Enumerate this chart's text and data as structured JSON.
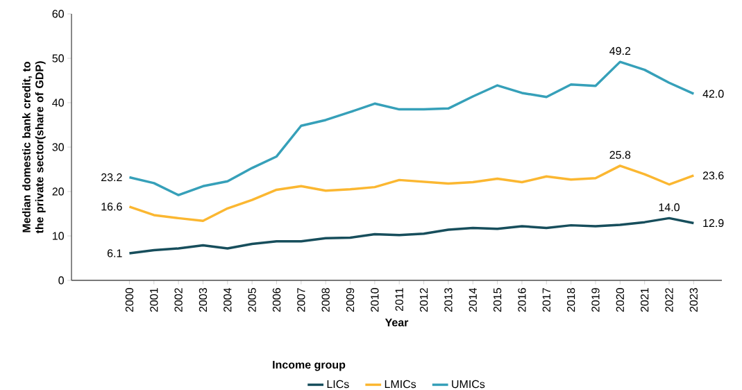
{
  "chart_data": {
    "type": "line",
    "xlabel": "Year",
    "ylabel": "Median domestic bank credit, to the private sector(share of GDP)",
    "legend_title": "Income group",
    "categories": [
      "2000",
      "2001",
      "2002",
      "2003",
      "2004",
      "2005",
      "2006",
      "2007",
      "2008",
      "2009",
      "2010",
      "2011",
      "2012",
      "2013",
      "2014",
      "2015",
      "2016",
      "2017",
      "2018",
      "2019",
      "2020",
      "2021",
      "2022",
      "2023"
    ],
    "series": [
      {
        "name": "LICs",
        "color": "#174e5c",
        "values": [
          6.1,
          6.8,
          7.2,
          7.9,
          7.2,
          8.2,
          8.8,
          8.8,
          9.5,
          9.6,
          10.4,
          10.2,
          10.5,
          11.4,
          11.8,
          11.6,
          12.2,
          11.8,
          12.4,
          12.2,
          12.5,
          13.1,
          14.0,
          12.9
        ],
        "value_labels": [
          "6.1",
          null,
          null,
          null,
          null,
          null,
          null,
          null,
          null,
          null,
          null,
          null,
          null,
          null,
          null,
          null,
          null,
          null,
          null,
          null,
          null,
          null,
          "14.0",
          "12.9"
        ]
      },
      {
        "name": "LMICs",
        "color": "#fbb731",
        "values": [
          16.6,
          14.7,
          14.0,
          13.4,
          16.2,
          18.1,
          20.4,
          21.2,
          20.2,
          20.5,
          21.0,
          22.6,
          22.2,
          21.8,
          22.1,
          22.9,
          22.1,
          23.4,
          22.7,
          23.0,
          25.8,
          23.9,
          21.6,
          23.6
        ],
        "value_labels": [
          "16.6",
          null,
          null,
          null,
          null,
          null,
          null,
          null,
          null,
          null,
          null,
          null,
          null,
          null,
          null,
          null,
          null,
          null,
          null,
          null,
          "25.8",
          null,
          null,
          "23.6"
        ]
      },
      {
        "name": "UMICs",
        "color": "#36a0b9",
        "values": [
          23.2,
          21.9,
          19.2,
          21.2,
          22.3,
          25.3,
          27.9,
          34.8,
          36.1,
          37.9,
          39.8,
          38.5,
          38.5,
          38.7,
          41.4,
          43.9,
          42.2,
          41.3,
          44.1,
          43.8,
          49.2,
          47.4,
          44.5,
          42.0
        ],
        "value_labels": [
          "23.2",
          null,
          null,
          null,
          null,
          null,
          null,
          null,
          null,
          null,
          null,
          null,
          null,
          null,
          null,
          null,
          null,
          null,
          null,
          null,
          "49.2",
          null,
          null,
          "42.0"
        ]
      }
    ],
    "ylim": [
      0,
      60
    ],
    "yticks": [
      0,
      10,
      20,
      30,
      40,
      50,
      60
    ],
    "legend": "bottom",
    "grid": false,
    "marker": "none",
    "line_style": "solid"
  }
}
